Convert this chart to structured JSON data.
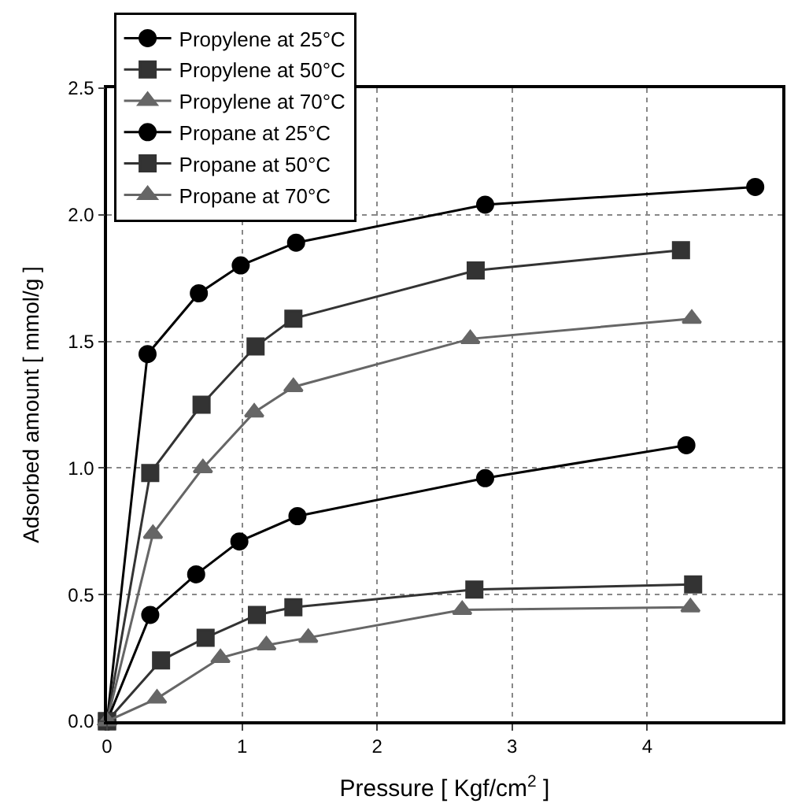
{
  "chart_data": {
    "type": "line",
    "xlabel": "Pressure [ Kgf/cm$^{2}$ ]",
    "ylabel": "Adsorbed amount [ mmol/g ]",
    "xlim": [
      0,
      5
    ],
    "ylim": [
      0,
      2.5
    ],
    "xticks": [
      0,
      1,
      2,
      3,
      4
    ],
    "yticks": [
      {
        "value": 0,
        "label": "0.0"
      },
      {
        "value": 0.5,
        "label": "0.5"
      },
      {
        "value": 1,
        "label": "1.0"
      },
      {
        "value": 1.5,
        "label": "1.5"
      },
      {
        "value": 2,
        "label": "2.0"
      },
      {
        "value": 2.5,
        "label": "2.5"
      }
    ],
    "grid": true,
    "legend": "top left",
    "line_style": "solid",
    "series": [
      {
        "name": "Propylene at 25°C",
        "color": "#000000",
        "marker": "circle",
        "x": [
          0,
          0.3,
          0.68,
          0.99,
          1.4,
          2.8,
          4.8
        ],
        "values": [
          0,
          1.45,
          1.69,
          1.8,
          1.89,
          2.04,
          2.11
        ]
      },
      {
        "name": "Propylene at 50°C",
        "color": "#333333",
        "marker": "square",
        "x": [
          0,
          0.32,
          0.7,
          1.1,
          1.38,
          2.73,
          4.25
        ],
        "values": [
          0,
          0.98,
          1.25,
          1.48,
          1.59,
          1.78,
          1.86
        ]
      },
      {
        "name": "Propylene at 70°C",
        "color": "#666666",
        "marker": "triangle",
        "x": [
          0,
          0.34,
          0.71,
          1.09,
          1.38,
          2.69,
          4.33
        ],
        "values": [
          0,
          0.74,
          1.0,
          1.22,
          1.32,
          1.51,
          1.59
        ]
      },
      {
        "name": "Propane at 25°C",
        "color": "#000000",
        "marker": "circle",
        "x": [
          0,
          0.32,
          0.66,
          0.98,
          1.41,
          2.8,
          4.29
        ],
        "values": [
          0,
          0.42,
          0.58,
          0.71,
          0.81,
          0.96,
          1.09
        ]
      },
      {
        "name": "Propane at 50°C",
        "color": "#333333",
        "marker": "square",
        "x": [
          0,
          0.4,
          0.73,
          1.11,
          1.38,
          2.72,
          4.34
        ],
        "values": [
          0,
          0.24,
          0.33,
          0.42,
          0.45,
          0.52,
          0.54
        ]
      },
      {
        "name": "Propane at 70°C",
        "color": "#666666",
        "marker": "triangle",
        "x": [
          0,
          0.37,
          0.84,
          1.18,
          1.49,
          2.63,
          4.32
        ],
        "values": [
          0,
          0.09,
          0.25,
          0.3,
          0.33,
          0.44,
          0.45
        ]
      }
    ]
  }
}
